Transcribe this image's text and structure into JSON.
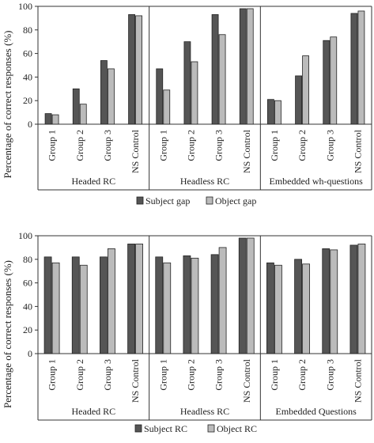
{
  "chart_data": [
    {
      "type": "bar",
      "title": "",
      "ylabel": "Percentage of correct responses (%)",
      "ylim": [
        0,
        100
      ],
      "yticks": [
        0,
        20,
        40,
        60,
        80,
        100
      ],
      "grid": false,
      "legend_position": "bottom",
      "categories": [
        "Group 1",
        "Group 2",
        "Group 3",
        "NS Control"
      ],
      "panels": [
        "Headed RC",
        "Headless RC",
        "Embedded wh-questions"
      ],
      "series": [
        {
          "name": "Subject gap",
          "color": "#555555",
          "values": [
            [
              9,
              30,
              54,
              93
            ],
            [
              47,
              70,
              93,
              98
            ],
            [
              21,
              41,
              71,
              94
            ]
          ]
        },
        {
          "name": "Object gap",
          "color": "#bbbbbb",
          "values": [
            [
              8,
              17,
              47,
              92
            ],
            [
              29,
              53,
              76,
              98
            ],
            [
              20,
              58,
              74,
              96
            ]
          ]
        }
      ]
    },
    {
      "type": "bar",
      "title": "",
      "ylabel": "Percentage of correct responses (%)",
      "ylim": [
        0,
        100
      ],
      "yticks": [
        0,
        20,
        40,
        60,
        80,
        100
      ],
      "grid": false,
      "legend_position": "bottom",
      "categories": [
        "Group 1",
        "Group 2",
        "Group 3",
        "NS Control"
      ],
      "panels": [
        "Headed RC",
        "Headless RC",
        "Embedded Questions"
      ],
      "series": [
        {
          "name": "Subject RC",
          "color": "#555555",
          "values": [
            [
              82,
              82,
              82,
              93
            ],
            [
              82,
              83,
              84,
              98
            ],
            [
              77,
              80,
              89,
              92
            ]
          ]
        },
        {
          "name": "Object RC",
          "color": "#bbbbbb",
          "values": [
            [
              77,
              75,
              89,
              93
            ],
            [
              77,
              81,
              90,
              98
            ],
            [
              75,
              76,
              88,
              93
            ]
          ]
        }
      ]
    }
  ]
}
